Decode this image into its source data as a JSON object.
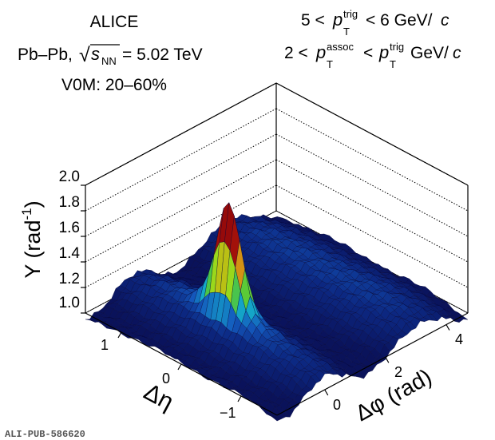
{
  "chart_data": {
    "type": "surface3d",
    "title_left": {
      "experiment": "ALICE",
      "system": "Pb–Pb,",
      "sqrt_symbol": "√",
      "energy_var": "s",
      "energy_sub": "NN",
      "energy_value": "= 5.02 TeV",
      "centrality": "V0M: 20–60%"
    },
    "title_right": {
      "line1_pre": "5 <",
      "line1_var": "p",
      "line1_sub": "T",
      "line1_sup": "trig",
      "line1_post": "< 6 GeV/",
      "line1_c": "c",
      "line2_pre": "2 <",
      "line2_var": "p",
      "line2_sub": "T",
      "line2_sup": "assoc",
      "line2_mid": "<",
      "line2_var2": "p",
      "line2_sub2": "T",
      "line2_sup2": "trig",
      "line2_post": "GeV/",
      "line2_c": "c"
    },
    "zlabel": "Y (rad⁻¹)",
    "zlabel_main": "Y (rad",
    "zlabel_sup": "-1",
    "zlabel_close": ")",
    "xlabel": "Δφ (rad)",
    "ylabel": "Δη",
    "zlim": [
      1.0,
      2.0
    ],
    "z_ticks": [
      "1.0",
      "1.2",
      "1.4",
      "1.6",
      "1.8",
      "2.0"
    ],
    "z_tick_values": [
      1.0,
      1.2,
      1.4,
      1.6,
      1.8,
      2.0
    ],
    "x_range": [
      -1.571,
      4.712
    ],
    "x_ticks": [
      "0",
      "2",
      "4"
    ],
    "x_tick_values": [
      0,
      2,
      4
    ],
    "y_range": [
      -1.6,
      1.6
    ],
    "y_ticks": [
      "1",
      "0",
      "−1"
    ],
    "y_tick_values": [
      1,
      0,
      -1
    ],
    "grid": "dotted z-gridlines on back walls",
    "colormap": "rainbow (dark blue → cyan → green → yellow → red)",
    "features": {
      "near_side_peak": {
        "dphi": 0,
        "deta": 0,
        "height": 1.78
      },
      "baseline": 1.0,
      "ridge_near_side_height": 1.15,
      "away_side_ridge": {
        "dphi": 3.14,
        "height": 1.18
      }
    },
    "watermark": "ALI-PUB-586620"
  }
}
